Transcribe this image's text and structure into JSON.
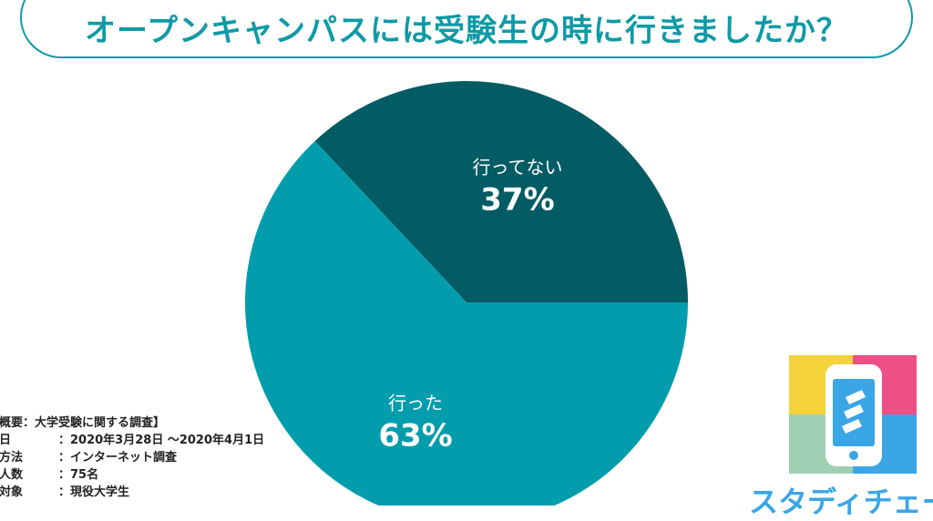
{
  "header": {
    "title": "オープンキャンパスには受験生の時に行きましたか？"
  },
  "chart_data": {
    "type": "pie",
    "slices": [
      {
        "label": "行ってない",
        "value": 37,
        "display": "37%",
        "color": "#035c64"
      },
      {
        "label": "行った",
        "value": 63,
        "display": "63%",
        "color": "#029dad"
      }
    ]
  },
  "survey": {
    "heading": "査概要：大学受験に関する調査】",
    "rows": [
      {
        "key": "査日",
        "value": "：2020年3月28日 〜2020年4月1日"
      },
      {
        "key": "査方法",
        "value": "：インターネット調査"
      },
      {
        "key": "査人数",
        "value": "：75名"
      },
      {
        "key": "査対象",
        "value": "：現役大学生"
      }
    ]
  },
  "logo": {
    "brand_text": "スタディチェー",
    "colors": [
      "#f5d33a",
      "#ee4f86",
      "#9fcfb3",
      "#3aa6e6"
    ]
  }
}
